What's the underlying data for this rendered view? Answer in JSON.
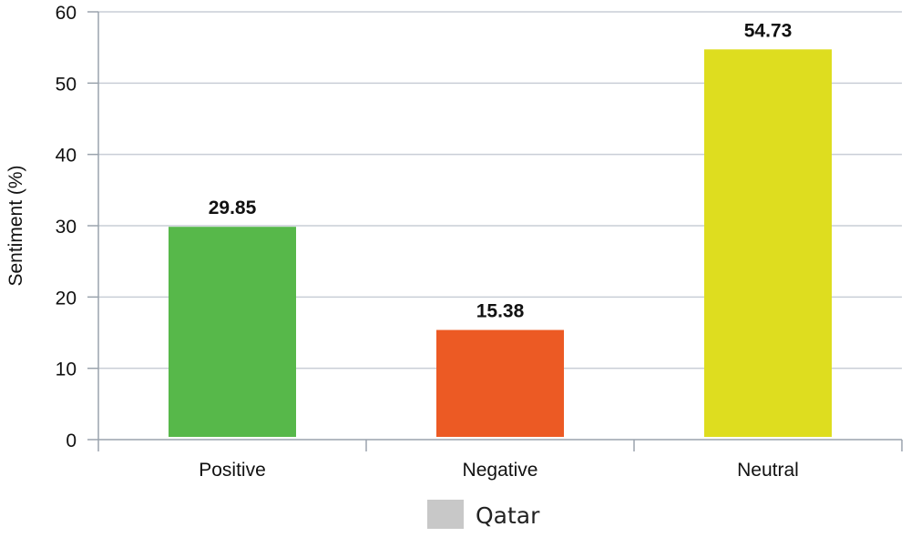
{
  "chart_data": {
    "type": "bar",
    "categories": [
      "Positive",
      "Negative",
      "Neutral"
    ],
    "series": [
      {
        "name": "Qatar",
        "values": [
          29.85,
          15.38,
          54.73
        ],
        "value_labels": [
          "29.85",
          "15.38",
          "54.73"
        ]
      }
    ],
    "bar_colors": [
      "#57b84a",
      "#ec5a24",
      "#dedd1f"
    ],
    "ylabel": "Sentiment (%)",
    "xlabel": "",
    "ylim": [
      0,
      60
    ],
    "yticks": [
      0,
      10,
      20,
      30,
      40,
      50,
      60
    ],
    "grid": true,
    "legend": {
      "position": "bottom",
      "entries": [
        {
          "label": "Qatar",
          "color": "#c8c8c8"
        }
      ]
    }
  }
}
